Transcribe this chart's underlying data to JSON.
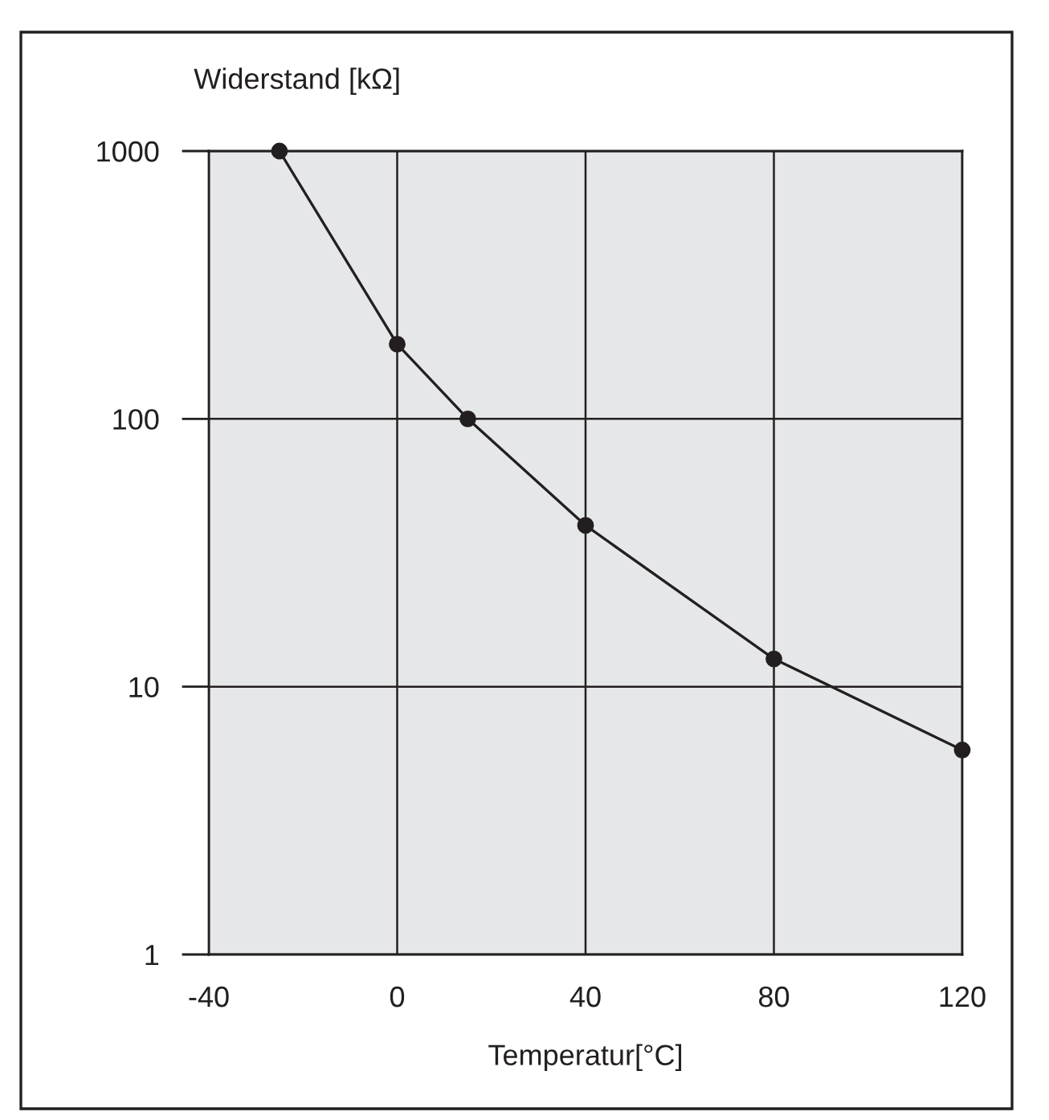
{
  "chart_data": {
    "type": "line",
    "xlabel": "Temperatur[°C]",
    "ylabel": "Widerstand [kΩ]",
    "x": [
      -25,
      0,
      15,
      40,
      80,
      120
    ],
    "series": [
      {
        "color": "#231f20",
        "values": [
          1000,
          190,
          100,
          40,
          12.7,
          5.8
        ]
      }
    ],
    "xlim": [
      -40,
      120
    ],
    "ylim": [
      1,
      1000
    ],
    "xticks": [
      -40,
      0,
      40,
      80,
      120
    ],
    "yticks": [
      1,
      10,
      100,
      1000
    ],
    "log": true,
    "grid": true,
    "marker": "circle",
    "line_style": "solid"
  }
}
